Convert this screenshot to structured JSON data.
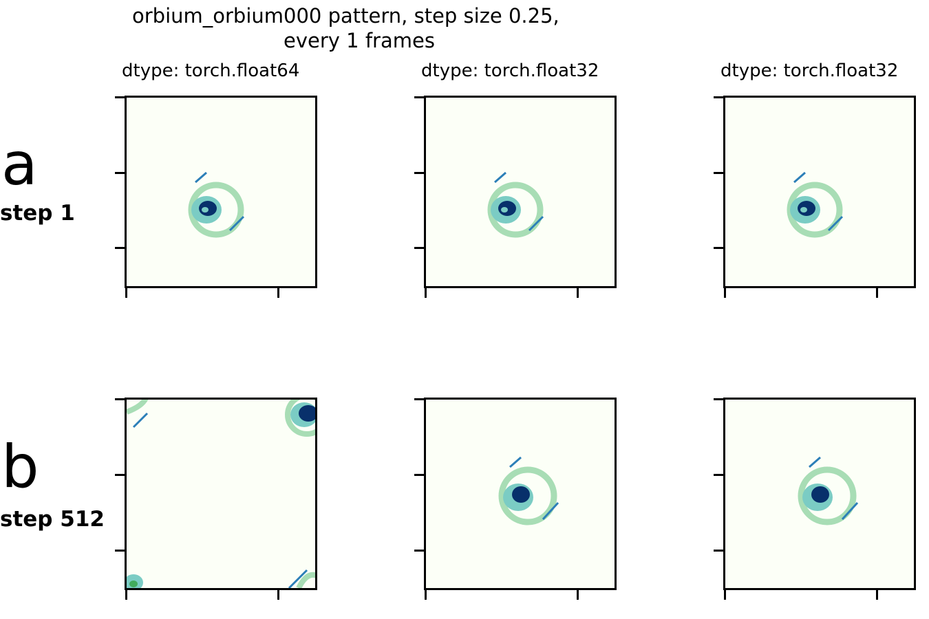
{
  "figure": {
    "title_line1": "orbium_orbium000 pattern, step size 0.25,",
    "title_line2": "every 1 frames"
  },
  "columns": [
    {
      "subtitle": "dtype: torch.float64"
    },
    {
      "subtitle": "dtype: torch.float32"
    },
    {
      "subtitle": "dtype: torch.float32"
    }
  ],
  "rows": [
    {
      "letter": "a",
      "label": "step 1"
    },
    {
      "letter": "b",
      "label": "step 512"
    }
  ],
  "colors": {
    "background": "#fcfff7",
    "light": "#ccebc5",
    "mid": "#7bccc4",
    "dark": "#08306b",
    "ring": "#a8ddb5"
  }
}
